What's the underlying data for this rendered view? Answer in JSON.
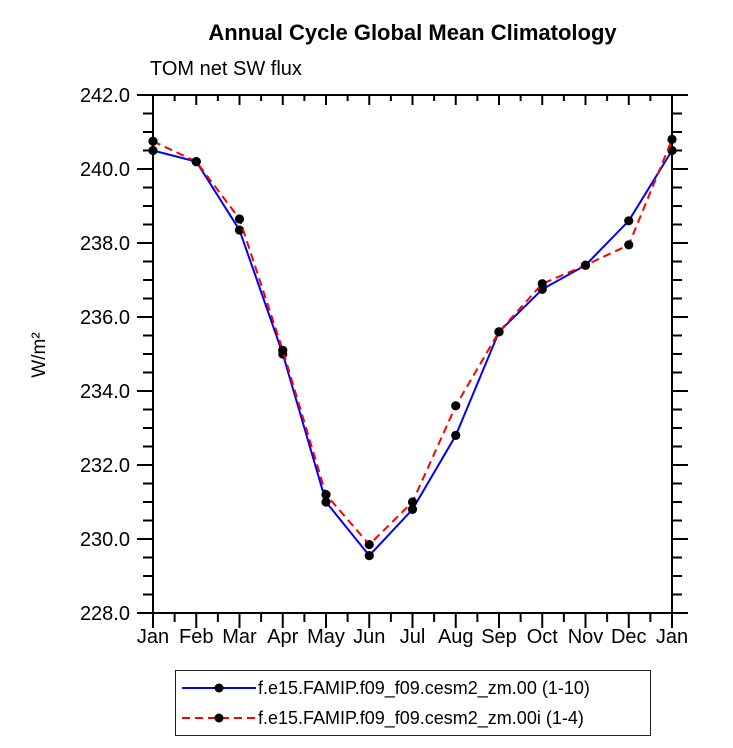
{
  "title": "Annual Cycle Global Mean Climatology",
  "subtitle": "TOM net SW flux",
  "chart_data": {
    "type": "line",
    "title": "Annual Cycle Global Mean Climatology",
    "subtitle": "TOM net SW flux",
    "ylabel": "W/m²",
    "xlabel": "",
    "categories": [
      "Jan",
      "Feb",
      "Mar",
      "Apr",
      "May",
      "Jun",
      "Jul",
      "Aug",
      "Sep",
      "Oct",
      "Nov",
      "Dec",
      "Jan"
    ],
    "series": [
      {
        "name": "f.e15.FAMIP.f09_f09.cesm2_zm.00 (1-10)",
        "color": "#0000ff",
        "style": "solid",
        "marker": "filled-circle",
        "marker_color": "#000000",
        "values": [
          240.5,
          240.2,
          238.35,
          235.0,
          231.0,
          229.55,
          230.8,
          232.8,
          235.6,
          236.75,
          237.4,
          238.6,
          240.5
        ]
      },
      {
        "name": "f.e15.FAMIP.f09_f09.cesm2_zm.00i (1-4)",
        "color": "#ff0000",
        "style": "dashed",
        "marker": "filled-circle",
        "marker_color": "#000000",
        "values": [
          240.75,
          240.2,
          238.65,
          235.1,
          231.2,
          229.85,
          231.0,
          233.6,
          235.6,
          236.9,
          237.4,
          237.95,
          240.8
        ]
      }
    ],
    "ylim": [
      228.0,
      242.0
    ],
    "ytick_labels": [
      "228.0",
      "230.0",
      "232.0",
      "234.0",
      "236.0",
      "238.0",
      "240.0",
      "242.0"
    ],
    "ytick_step": 2.0,
    "ytick_minor_step": 0.5,
    "xtick_minor_per_interval": 1,
    "grid": "off",
    "frame": "box",
    "legend_position": "bottom",
    "axis_color": "#000000"
  }
}
